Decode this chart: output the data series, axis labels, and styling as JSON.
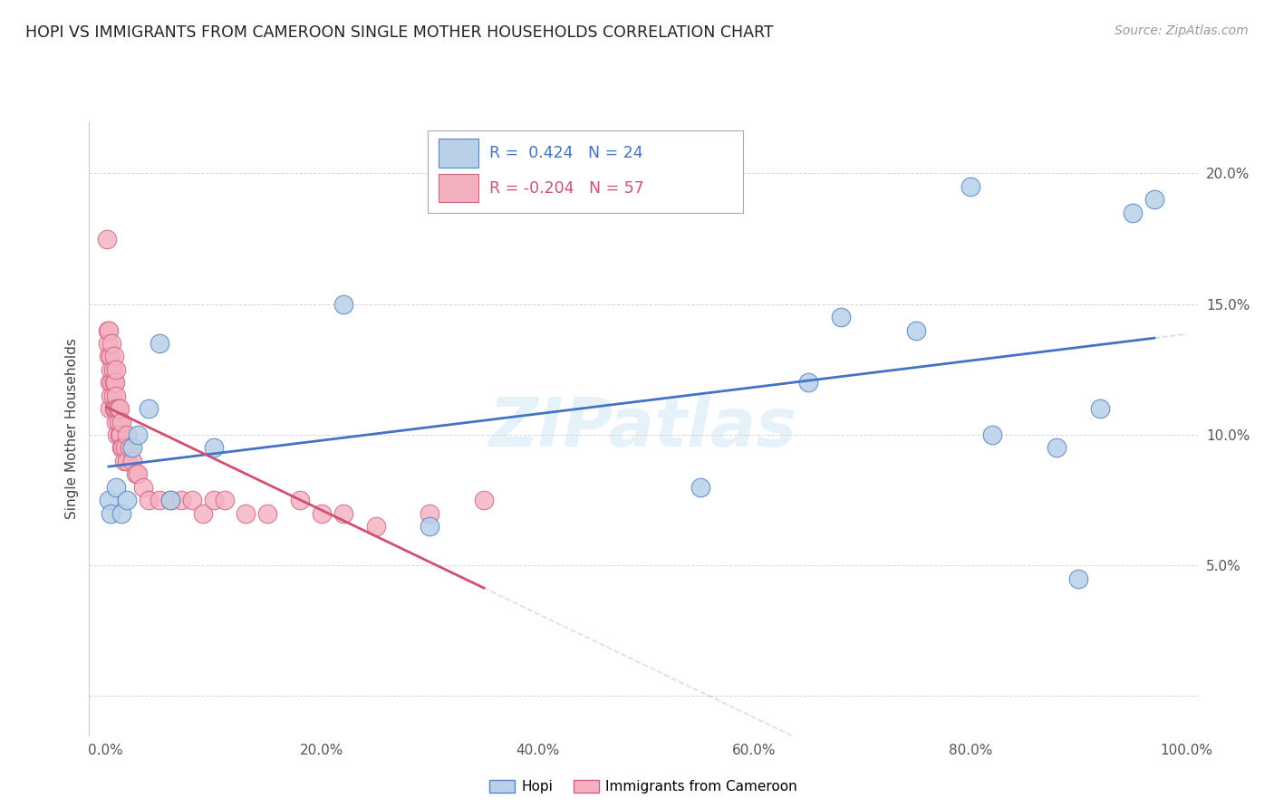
{
  "title": "HOPI VS IMMIGRANTS FROM CAMEROON SINGLE MOTHER HOUSEHOLDS CORRELATION CHART",
  "source": "Source: ZipAtlas.com",
  "ylabel": "Single Mother Households",
  "hopi_R": 0.424,
  "hopi_N": 24,
  "cameroon_R": -0.204,
  "cameroon_N": 57,
  "hopi_color": "#b8d0e8",
  "cameroon_color": "#f5b0c0",
  "hopi_edge_color": "#5585c5",
  "cameroon_edge_color": "#d06080",
  "hopi_line_color": "#4472C4",
  "cameroon_line_color": "#d05070",
  "watermark": "ZIPatlas",
  "legend_R_blue": "#4472C4",
  "legend_R_pink": "#d05070",
  "hopi_scatter_x": [
    0.3,
    0.5,
    1.0,
    1.5,
    2.0,
    2.5,
    3.0,
    4.0,
    5.0,
    6.0,
    10.0,
    22.0,
    30.0,
    55.0,
    65.0,
    68.0,
    75.0,
    80.0,
    82.0,
    88.0,
    90.0,
    92.0,
    95.0,
    97.0
  ],
  "hopi_scatter_y": [
    7.5,
    7.0,
    8.0,
    7.0,
    7.5,
    9.5,
    10.0,
    11.0,
    13.5,
    7.5,
    9.5,
    15.0,
    6.5,
    8.0,
    12.0,
    14.5,
    14.0,
    19.5,
    10.0,
    9.5,
    4.5,
    11.0,
    18.5,
    19.0
  ],
  "cameroon_scatter_x": [
    0.1,
    0.2,
    0.2,
    0.3,
    0.3,
    0.4,
    0.4,
    0.5,
    0.5,
    0.5,
    0.6,
    0.6,
    0.7,
    0.7,
    0.8,
    0.8,
    0.8,
    0.9,
    0.9,
    1.0,
    1.0,
    1.0,
    1.1,
    1.1,
    1.2,
    1.2,
    1.3,
    1.3,
    1.4,
    1.5,
    1.5,
    1.6,
    1.7,
    1.8,
    2.0,
    2.0,
    2.2,
    2.5,
    2.8,
    3.0,
    3.5,
    4.0,
    5.0,
    6.0,
    7.0,
    8.0,
    9.0,
    10.0,
    11.0,
    13.0,
    15.0,
    18.0,
    20.0,
    22.0,
    25.0,
    30.0,
    35.0
  ],
  "cameroon_scatter_y": [
    17.5,
    14.0,
    13.5,
    13.0,
    14.0,
    11.0,
    12.0,
    12.5,
    11.5,
    13.0,
    12.0,
    13.5,
    11.5,
    12.5,
    11.0,
    12.0,
    13.0,
    11.0,
    12.0,
    10.5,
    11.5,
    12.5,
    10.0,
    11.0,
    10.5,
    11.0,
    10.0,
    11.0,
    10.0,
    9.5,
    10.5,
    9.5,
    9.0,
    9.5,
    9.0,
    10.0,
    9.5,
    9.0,
    8.5,
    8.5,
    8.0,
    7.5,
    7.5,
    7.5,
    7.5,
    7.5,
    7.0,
    7.5,
    7.5,
    7.0,
    7.0,
    7.5,
    7.0,
    7.0,
    6.5,
    7.0,
    7.5
  ]
}
